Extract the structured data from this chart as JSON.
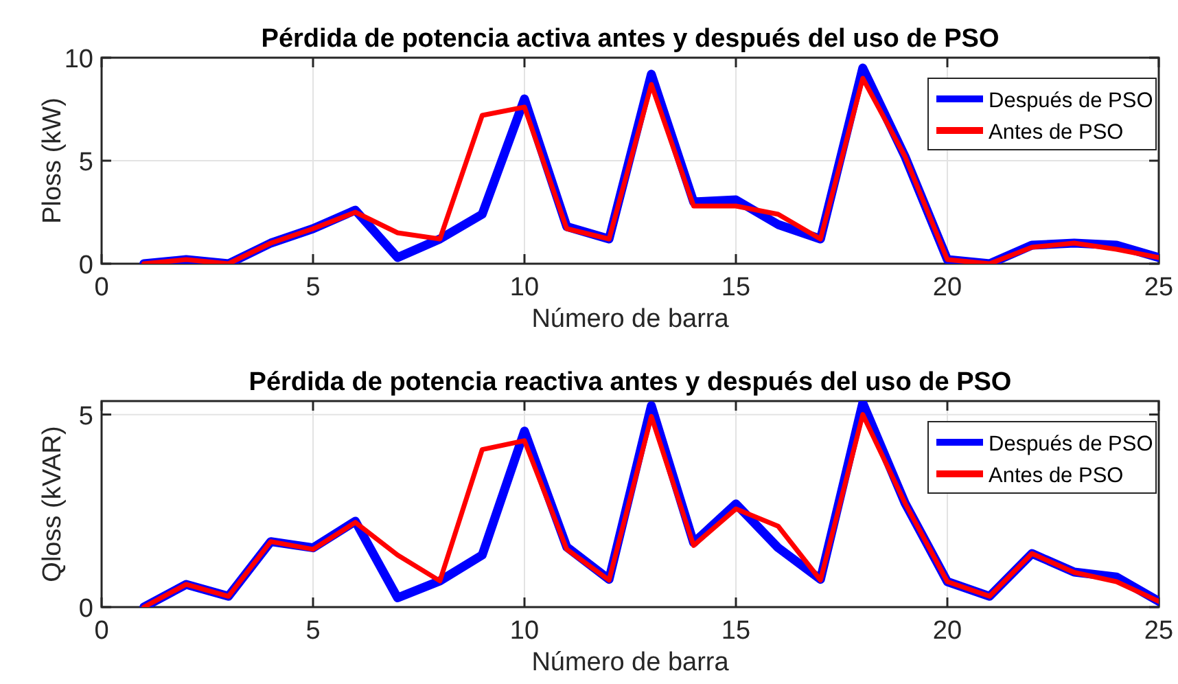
{
  "chart_data": [
    {
      "type": "line",
      "title": "Pérdida de potencia activa antes y después del uso de PSO",
      "xlabel": "Número de barra",
      "ylabel": "Ploss (kW)",
      "x": [
        1,
        2,
        3,
        4,
        5,
        6,
        7,
        8,
        9,
        10,
        11,
        12,
        13,
        14,
        15,
        16,
        17,
        18,
        19,
        20,
        21,
        22,
        23,
        24,
        25
      ],
      "xlim": [
        0,
        25
      ],
      "xticks": [
        0,
        5,
        10,
        15,
        20,
        25
      ],
      "ylim": [
        0,
        10
      ],
      "yticks": [
        0,
        5,
        10
      ],
      "grid": true,
      "legend": "top right",
      "line_style": "solid",
      "series": [
        {
          "name": "Después de PSO",
          "color": "#0000ff",
          "values": [
            0,
            0.2,
            0,
            1.0,
            1.7,
            2.6,
            0.3,
            1.2,
            2.4,
            8.0,
            1.8,
            1.2,
            9.2,
            3.0,
            3.1,
            1.9,
            1.2,
            9.5,
            5.2,
            0.2,
            0,
            0.9,
            1.0,
            0.9,
            0.3
          ]
        },
        {
          "name": "Antes de PSO",
          "color": "#ff0000",
          "values": [
            0,
            0.2,
            0,
            1.0,
            1.7,
            2.5,
            1.5,
            1.2,
            7.2,
            7.6,
            1.7,
            1.2,
            8.7,
            2.8,
            2.8,
            2.4,
            1.2,
            9.0,
            5.2,
            0.2,
            0,
            0.8,
            1.0,
            0.7,
            0.3
          ]
        }
      ]
    },
    {
      "type": "line",
      "title": "Pérdida de potencia reactiva antes y después del uso de PSO",
      "xlabel": "Número de barra",
      "ylabel": "Qloss (kVAR)",
      "x": [
        1,
        2,
        3,
        4,
        5,
        6,
        7,
        8,
        9,
        10,
        11,
        12,
        13,
        14,
        15,
        16,
        17,
        18,
        19,
        20,
        21,
        22,
        23,
        24,
        25
      ],
      "xlim": [
        0,
        25
      ],
      "xticks": [
        0,
        5,
        10,
        15,
        20,
        25
      ],
      "ylim": [
        0,
        5.35
      ],
      "yticks": [
        0,
        5
      ],
      "grid": true,
      "legend": "top right",
      "line_style": "solid",
      "series": [
        {
          "name": "Después de PSO",
          "color": "#0000ff",
          "values": [
            0,
            0.59,
            0.28,
            1.7,
            1.54,
            2.23,
            0.24,
            0.68,
            1.35,
            4.57,
            1.56,
            0.72,
            5.23,
            1.67,
            2.68,
            1.54,
            0.72,
            5.3,
            2.7,
            0.66,
            0.28,
            1.39,
            0.91,
            0.78,
            0.15
          ]
        },
        {
          "name": "Antes de PSO",
          "color": "#ff0000",
          "values": [
            0,
            0.59,
            0.28,
            1.7,
            1.5,
            2.2,
            1.35,
            0.68,
            4.09,
            4.32,
            1.5,
            0.7,
            4.95,
            1.6,
            2.55,
            2.1,
            0.7,
            5.0,
            2.7,
            0.66,
            0.28,
            1.39,
            0.9,
            0.66,
            0.15
          ]
        }
      ]
    }
  ]
}
